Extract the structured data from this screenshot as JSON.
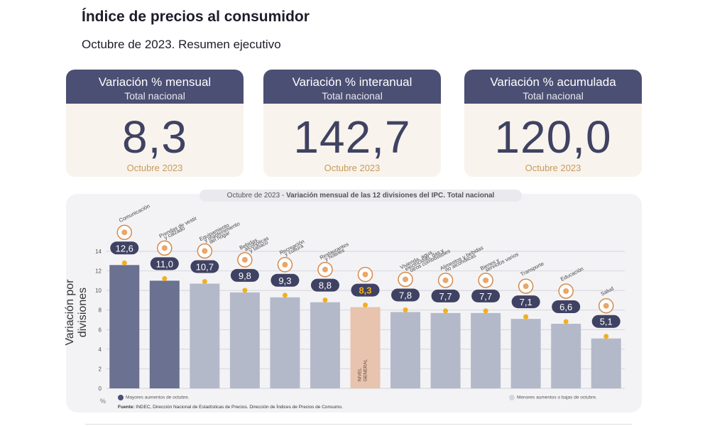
{
  "header": {
    "title": "Índice de precios al consumidor",
    "subtitle": "Octubre de 2023. Resumen ejecutivo"
  },
  "cards": [
    {
      "title": "Variación % mensual",
      "scope": "Total nacional",
      "value": "8,3",
      "period": "Octubre 2023"
    },
    {
      "title": "Variación % interanual",
      "scope": "Total nacional",
      "value": "142,7",
      "period": "Octubre 2023"
    },
    {
      "title": "Variación % acumulada",
      "scope": "Total nacional",
      "value": "120,0",
      "period": "Octubre 2023"
    }
  ],
  "chart_panel": {
    "title_prefix": "Octubre de 2023 - ",
    "title_main": "Variación mensual de las 12 divisiones del IPC. Total nacional",
    "ylabel": "Variación por divisiones",
    "unit": "%",
    "legend_high": "Mayores aumentos de octubre.",
    "legend_low": "Menores aumentos o bajas de octubre.",
    "source_label": "Fuente:",
    "source_text": " INDEC, Dirección Nacional de Estadísticas de Precios. Dirección de Índices de Precios de Consumo.",
    "colors": {
      "high": "#6a7191",
      "low": "#b4b9ca",
      "general": "#e8c3ad",
      "bubble": "#3f4262",
      "dot": "#f2b01e"
    }
  },
  "chart_data": {
    "type": "bar",
    "ylabel": "Variación por divisiones",
    "ylim": [
      0,
      14
    ],
    "yticks": [
      0,
      2,
      4,
      6,
      8,
      10,
      12,
      14
    ],
    "grid": true,
    "categories": [
      "Comunicación",
      "Prendas de vestir y calzado",
      "Equipamiento y mantenimiento del hogar",
      "Bebidas alcohólicas y tabaco",
      "Recreación y cultura",
      "Restaurantes y hoteles",
      "NIVEL GENERAL",
      "Vivienda, agua, electricidad, gas y otros combustibles",
      "Alimentos y bebidas no alcohólicas",
      "Bienes y servicios varios",
      "Transporte",
      "Educación",
      "Salud"
    ],
    "label_lines": [
      [
        "Comunicación"
      ],
      [
        "Prendas de vestir",
        "y calzado"
      ],
      [
        "Equipamiento",
        "y mantenimiento",
        "del hogar"
      ],
      [
        "Bebidas",
        "alcohólicas",
        "y tabaco"
      ],
      [
        "Recreación",
        "y cultura"
      ],
      [
        "Restaurantes",
        "y hoteles"
      ],
      [
        "NIVEL",
        "GENERAL"
      ],
      [
        "Vivienda, agua,",
        "electricidad, gas y",
        "otros combustibles"
      ],
      [
        "Alimentos y bebidas",
        "no alcohólicas"
      ],
      [
        "Bienes y",
        "servicios varios"
      ],
      [
        "Transporte"
      ],
      [
        "Educación"
      ],
      [
        "Salud"
      ]
    ],
    "values": [
      12.6,
      11.0,
      10.7,
      9.8,
      9.3,
      8.8,
      8.3,
      7.8,
      7.7,
      7.7,
      7.1,
      6.6,
      5.1
    ],
    "value_labels": [
      "12,6",
      "11,0",
      "10,7",
      "9,8",
      "9,3",
      "8,8",
      "8,3",
      "7,8",
      "7,7",
      "7,7",
      "7,1",
      "6,6",
      "5,1"
    ],
    "groups": [
      "high",
      "high",
      "low",
      "low",
      "low",
      "low",
      "general",
      "low",
      "low",
      "low",
      "low",
      "low",
      "low"
    ],
    "icons": [
      "phone-icon",
      "shirt-icon",
      "washing-machine-icon",
      "bottle-icon",
      "beach-umbrella-icon",
      "cutlery-icon",
      "shopping-basket-icon",
      "lightbulb-icon",
      "chicken-icon",
      "scissors-icon",
      "car-icon",
      "book-icon",
      "medical-cross-icon"
    ]
  }
}
